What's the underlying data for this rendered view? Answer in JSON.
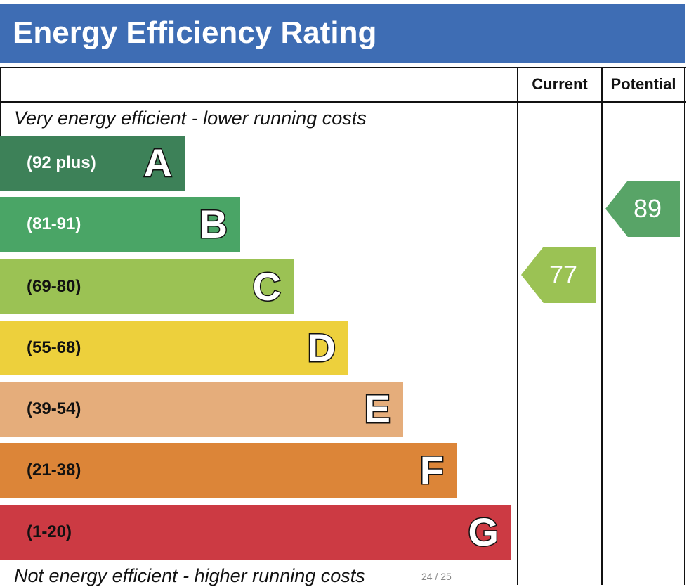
{
  "header": {
    "title": "Energy Efficiency Rating"
  },
  "columns": {
    "current": "Current",
    "potential": "Potential"
  },
  "notes": {
    "top": "Very energy efficient - lower running costs",
    "bottom": "Not energy efficient - higher running costs"
  },
  "page_indicator": "24 / 25",
  "chart_data": {
    "type": "bar",
    "title": "Energy Efficiency Rating",
    "bands": [
      {
        "letter": "A",
        "range": "(92 plus)",
        "color": "#3d8158",
        "range_color": "#ffffff"
      },
      {
        "letter": "B",
        "range": "(81-91)",
        "color": "#4aa566",
        "range_color": "#ffffff"
      },
      {
        "letter": "C",
        "range": "(69-80)",
        "color": "#9bc254",
        "range_color": "#111111"
      },
      {
        "letter": "D",
        "range": "(55-68)",
        "color": "#edd03c",
        "range_color": "#111111"
      },
      {
        "letter": "E",
        "range": "(39-54)",
        "color": "#e5ad7b",
        "range_color": "#111111"
      },
      {
        "letter": "F",
        "range": "(21-38)",
        "color": "#dc8538",
        "range_color": "#111111"
      },
      {
        "letter": "G",
        "range": "(1-20)",
        "color": "#cc3a43",
        "range_color": "#111111"
      }
    ],
    "current": {
      "value": 77,
      "band": "C",
      "color": "#9bc254"
    },
    "potential": {
      "value": 89,
      "band": "B",
      "color": "#58a467"
    }
  }
}
